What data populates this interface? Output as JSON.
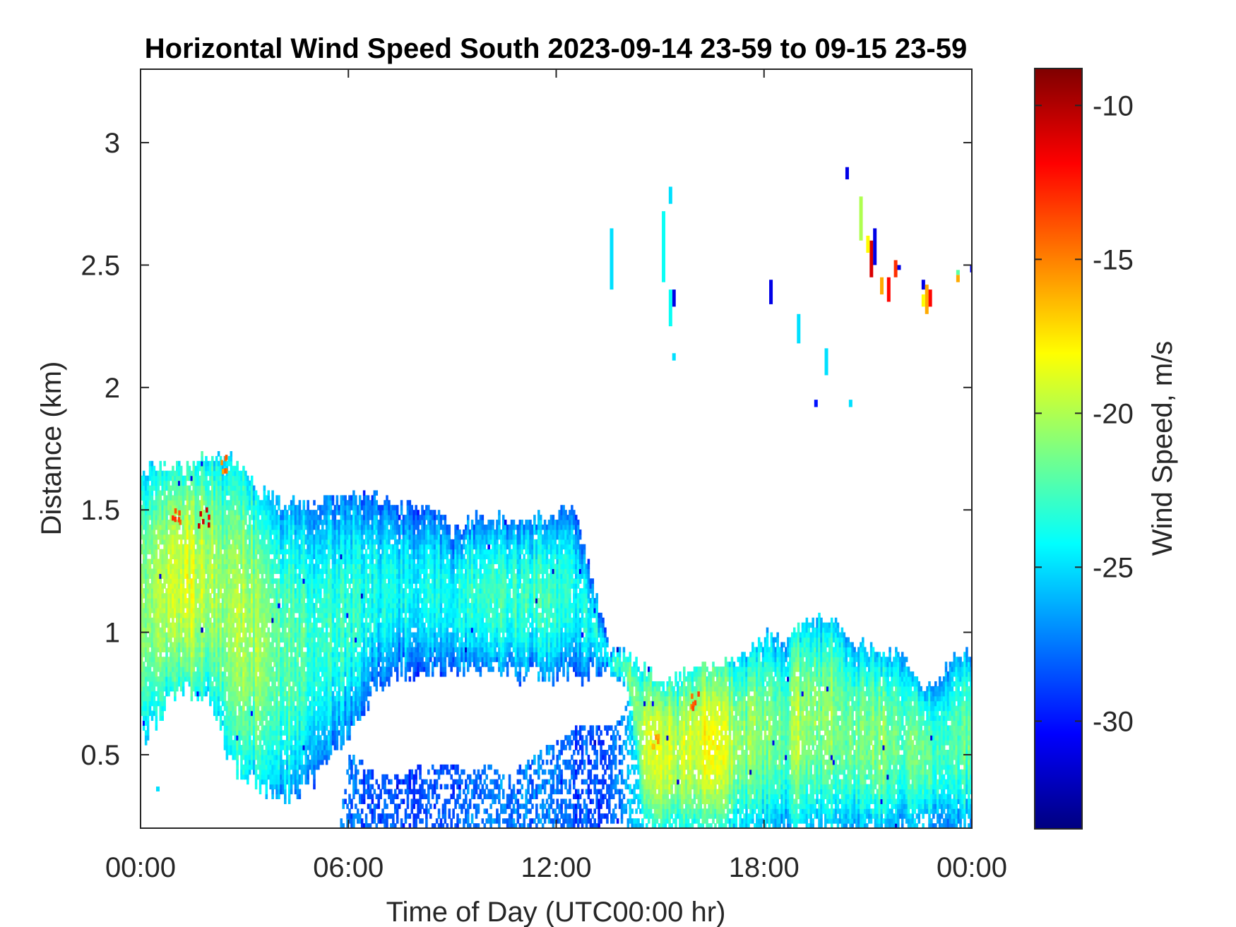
{
  "chart_data": {
    "type": "heatmap",
    "title": "Horizontal Wind Speed South 2023-09-14 23-59 to 09-15 23-59",
    "xlabel": "Time of Day (UTC00:00 hr)",
    "ylabel": "Distance (km)",
    "colorbar_label": "Wind Speed, m/s",
    "colormap": "jet",
    "xlim": [
      0,
      24
    ],
    "ylim": [
      0.2,
      3.3
    ],
    "xticks": [
      0,
      6,
      12,
      18,
      24
    ],
    "xtick_labels": [
      "00:00",
      "06:00",
      "12:00",
      "18:00",
      "00:00"
    ],
    "yticks": [
      0.5,
      1,
      1.5,
      2,
      2.5,
      3
    ],
    "ytick_labels": [
      "0.5",
      "1",
      "1.5",
      "2",
      "2.5",
      "3"
    ],
    "clim": [
      -33.5,
      -8.8
    ],
    "cticks": [
      -10,
      -15,
      -20,
      -25,
      -30
    ],
    "ctick_labels": [
      "-10",
      "-15",
      "-20",
      "-25",
      "-30"
    ],
    "grid": false,
    "coverage_profile": {
      "description_hours": [
        0,
        0.5,
        1,
        1.5,
        2,
        2.5,
        3,
        3.5,
        4,
        4.5,
        5,
        5.5,
        6,
        6.5,
        7,
        7.5,
        8,
        8.5,
        9,
        9.5,
        10,
        10.5,
        11,
        11.5,
        12,
        12.5,
        13,
        13.5,
        14,
        14.5,
        15,
        15.5,
        16,
        16.5,
        17,
        17.5,
        18,
        18.5,
        19,
        19.5,
        20,
        20.5,
        21,
        21.5,
        22,
        22.5,
        23,
        23.5,
        24
      ],
      "upper_top_km": [
        1.66,
        1.68,
        1.66,
        1.68,
        1.7,
        1.7,
        1.64,
        1.55,
        1.52,
        1.52,
        1.52,
        1.52,
        1.55,
        1.55,
        1.52,
        1.5,
        1.5,
        1.5,
        1.4,
        1.45,
        1.45,
        1.45,
        1.45,
        1.45,
        1.48,
        1.48,
        1.2,
        0.92,
        0.92,
        0.85,
        0.78,
        0.8,
        0.84,
        0.86,
        0.86,
        0.9,
        0.98,
        0.95,
        1.0,
        1.05,
        1.02,
        0.95,
        0.92,
        0.9,
        0.9,
        0.75,
        0.78,
        0.9,
        0.9
      ],
      "upper_bottom_km": [
        0.55,
        0.65,
        0.75,
        0.75,
        0.7,
        0.5,
        0.4,
        0.35,
        0.3,
        0.35,
        0.4,
        0.5,
        0.6,
        0.7,
        0.8,
        0.85,
        0.8,
        0.85,
        0.85,
        0.85,
        0.82,
        0.82,
        0.82,
        0.82,
        0.82,
        0.82,
        0.82,
        0.82,
        0.82,
        0.2,
        0.2,
        0.2,
        0.2,
        0.2,
        0.2,
        0.2,
        0.2,
        0.2,
        0.2,
        0.2,
        0.2,
        0.2,
        0.2,
        0.2,
        0.2,
        0.2,
        0.2,
        0.2,
        0.2
      ],
      "lower_top_km": [
        0,
        0,
        0,
        0,
        0,
        0,
        0,
        0,
        0,
        0,
        0,
        0,
        0.5,
        0.45,
        0.4,
        0.42,
        0.45,
        0.45,
        0.45,
        0.42,
        0.45,
        0.4,
        0.45,
        0.5,
        0.55,
        0.6,
        0.62,
        0.6,
        0.7,
        0.75,
        0.78,
        0.8,
        0.84,
        0.86,
        0.86,
        0.9,
        0.98,
        0.95,
        1.0,
        1.05,
        1.02,
        0.95,
        0.92,
        0.9,
        0.9,
        0.75,
        0.78,
        0.9,
        0.9
      ],
      "core_speed_m_s": [
        -21,
        -20,
        -19,
        -19,
        -20,
        -21,
        -20,
        -21,
        -22,
        -22,
        -23,
        -23,
        -23,
        -24,
        -24,
        -24,
        -24,
        -24,
        -24,
        -23,
        -23,
        -23,
        -23,
        -23,
        -23,
        -24,
        -24,
        -24,
        -22,
        -20,
        -19,
        -20,
        -19,
        -18,
        -20,
        -21,
        -21,
        -22,
        -20,
        -21,
        -21,
        -22,
        -21,
        -21,
        -22,
        -22,
        -23,
        -22,
        -22
      ]
    },
    "hotspots": [
      {
        "hour": 1.8,
        "km": 1.46,
        "speed_m_s": -11
      },
      {
        "hour": 1.0,
        "km": 1.48,
        "speed_m_s": -14
      },
      {
        "hour": 2.4,
        "km": 1.68,
        "speed_m_s": -15
      },
      {
        "hour": 16.0,
        "km": 0.72,
        "speed_m_s": -14
      },
      {
        "hour": 14.8,
        "km": 0.55,
        "speed_m_s": -16
      }
    ],
    "scattered_points": [
      {
        "hour": 13.6,
        "km_top": 2.65,
        "km_bottom": 2.4,
        "speed_m_s": -25
      },
      {
        "hour": 15.1,
        "km_top": 2.72,
        "km_bottom": 2.43,
        "speed_m_s": -24
      },
      {
        "hour": 15.3,
        "km_top": 2.82,
        "km_bottom": 2.75,
        "speed_m_s": -25
      },
      {
        "hour": 15.4,
        "km_top": 2.4,
        "km_bottom": 2.33,
        "speed_m_s": -31
      },
      {
        "hour": 15.3,
        "km_top": 2.4,
        "km_bottom": 2.25,
        "speed_m_s": -24
      },
      {
        "hour": 15.4,
        "km_top": 2.14,
        "km_bottom": 2.11,
        "speed_m_s": -25
      },
      {
        "hour": 18.2,
        "km_top": 2.44,
        "km_bottom": 2.34,
        "speed_m_s": -31
      },
      {
        "hour": 19.0,
        "km_top": 2.3,
        "km_bottom": 2.18,
        "speed_m_s": -25
      },
      {
        "hour": 19.8,
        "km_top": 2.16,
        "km_bottom": 2.05,
        "speed_m_s": -25
      },
      {
        "hour": 19.5,
        "km_top": 1.95,
        "km_bottom": 1.92,
        "speed_m_s": -30
      },
      {
        "hour": 20.4,
        "km_top": 2.9,
        "km_bottom": 2.85,
        "speed_m_s": -31
      },
      {
        "hour": 20.5,
        "km_top": 1.95,
        "km_bottom": 1.92,
        "speed_m_s": -25
      },
      {
        "hour": 20.8,
        "km_top": 2.78,
        "km_bottom": 2.6,
        "speed_m_s": -20
      },
      {
        "hour": 21.1,
        "km_top": 2.6,
        "km_bottom": 2.45,
        "speed_m_s": -11
      },
      {
        "hour": 21.2,
        "km_top": 2.65,
        "km_bottom": 2.5,
        "speed_m_s": -31
      },
      {
        "hour": 21.0,
        "km_top": 2.62,
        "km_bottom": 2.55,
        "speed_m_s": -18
      },
      {
        "hour": 21.4,
        "km_top": 2.45,
        "km_bottom": 2.38,
        "speed_m_s": -16
      },
      {
        "hour": 21.6,
        "km_top": 2.45,
        "km_bottom": 2.35,
        "speed_m_s": -12
      },
      {
        "hour": 21.8,
        "km_top": 2.52,
        "km_bottom": 2.45,
        "speed_m_s": -13
      },
      {
        "hour": 21.9,
        "km_top": 2.5,
        "km_bottom": 2.48,
        "speed_m_s": -31
      },
      {
        "hour": 22.6,
        "km_top": 2.44,
        "km_bottom": 2.4,
        "speed_m_s": -31
      },
      {
        "hour": 22.7,
        "km_top": 2.42,
        "km_bottom": 2.3,
        "speed_m_s": -16
      },
      {
        "hour": 22.8,
        "km_top": 2.4,
        "km_bottom": 2.33,
        "speed_m_s": -12
      },
      {
        "hour": 22.6,
        "km_top": 2.38,
        "km_bottom": 2.33,
        "speed_m_s": -18
      },
      {
        "hour": 23.6,
        "km_top": 2.46,
        "km_bottom": 2.43,
        "speed_m_s": -16
      },
      {
        "hour": 23.6,
        "km_top": 2.48,
        "km_bottom": 2.46,
        "speed_m_s": -22
      },
      {
        "hour": 24.0,
        "km_top": 2.5,
        "km_bottom": 2.47,
        "speed_m_s": -31
      },
      {
        "hour": 0.5,
        "km_top": 0.37,
        "km_bottom": 0.35,
        "speed_m_s": -25
      }
    ]
  }
}
